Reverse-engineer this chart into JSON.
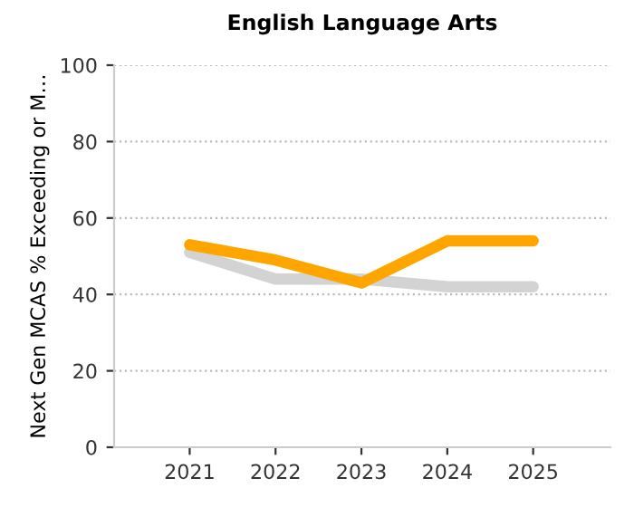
{
  "chart_data": {
    "type": "line",
    "title": "English Language Arts",
    "ylabel": "Next Gen MCAS % Exceeding or M…",
    "categories": [
      "2021",
      "2022",
      "2023",
      "2024",
      "2025"
    ],
    "series": [
      {
        "color": "#d3d3d3",
        "values": [
          51,
          44,
          44,
          42,
          42
        ]
      },
      {
        "color": "#ffa500",
        "values": [
          53,
          49,
          43,
          54,
          54
        ]
      }
    ],
    "ylim": [
      0,
      100
    ],
    "yticks": [
      0,
      20,
      40,
      60,
      80,
      100
    ],
    "grid": "y",
    "marker": "none",
    "line_style": "solid"
  }
}
